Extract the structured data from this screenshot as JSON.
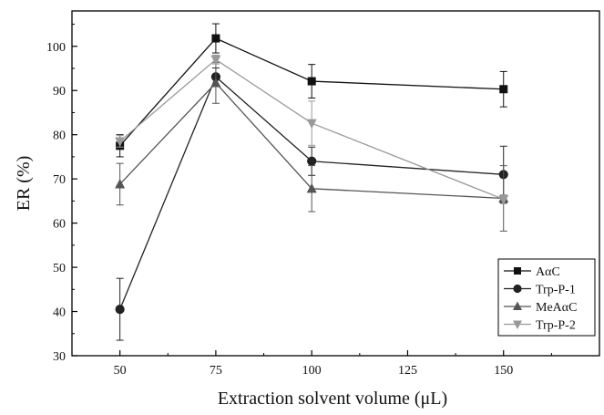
{
  "chart_data": {
    "type": "line",
    "xlabel": "Extraction solvent volume (μL)",
    "ylabel": "ER (%)",
    "xlim": [
      37.5,
      175
    ],
    "ylim": [
      30,
      108
    ],
    "x_ticks": [
      50,
      75,
      100,
      125,
      150
    ],
    "y_ticks": [
      30,
      40,
      50,
      60,
      70,
      80,
      90,
      100
    ],
    "legend_position": "bottom-right",
    "grid": false,
    "series": [
      {
        "name": "AαC",
        "marker": "square",
        "color": "#111111",
        "x": [
          50,
          75,
          100,
          150
        ],
        "values": [
          77.5,
          101.8,
          92.1,
          90.3
        ],
        "error": [
          2.5,
          3.3,
          3.8,
          4.0
        ]
      },
      {
        "name": "Trp-P-1",
        "marker": "circle",
        "color": "#222222",
        "x": [
          50,
          75,
          100,
          150
        ],
        "values": [
          40.5,
          93.1,
          74.0,
          71.0
        ],
        "error": [
          7.0,
          2.0,
          3.2,
          6.4
        ]
      },
      {
        "name": "MeAαC",
        "marker": "triangle-up",
        "color": "#555555",
        "x": [
          50,
          75,
          100,
          150
        ],
        "values": [
          68.8,
          91.7,
          67.8,
          65.6
        ],
        "error": [
          4.7,
          4.6,
          5.2,
          7.4
        ]
      },
      {
        "name": "Trp-P-2",
        "marker": "triangle-down",
        "color": "#999999",
        "x": [
          50,
          75,
          100,
          150
        ],
        "values": [
          78.5,
          97.0,
          82.6,
          65.4
        ],
        "error": [
          1.3,
          1.0,
          5.0,
          1.0
        ]
      }
    ]
  }
}
